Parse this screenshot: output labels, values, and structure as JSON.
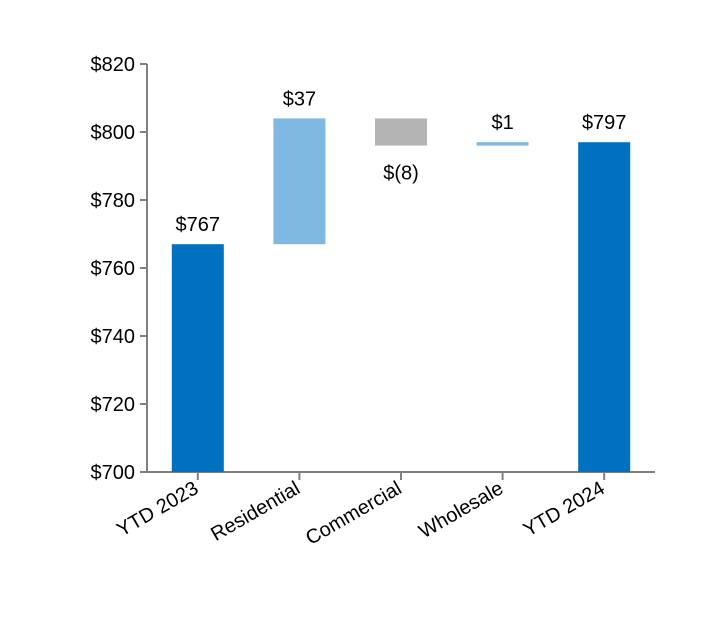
{
  "chart_data": {
    "type": "waterfall",
    "categories": [
      "YTD 2023",
      "Residential",
      "Commercial",
      "Wholesale",
      "YTD 2024"
    ],
    "bars": [
      {
        "kind": "total",
        "start": 0,
        "end": 767,
        "label": "$767",
        "color": "#0070C0"
      },
      {
        "kind": "delta",
        "start": 767,
        "end": 804,
        "label": "$37",
        "color": "#7FB8E1"
      },
      {
        "kind": "delta",
        "start": 804,
        "end": 796,
        "label": "$(8)",
        "color": "#B4B4B4"
      },
      {
        "kind": "delta",
        "start": 796,
        "end": 797,
        "label": "$1",
        "color": "#7FB8E1"
      },
      {
        "kind": "total",
        "start": 0,
        "end": 797,
        "label": "$797",
        "color": "#0070C0"
      }
    ],
    "values": [
      767,
      37,
      -8,
      1,
      797
    ],
    "ylim": [
      700,
      820
    ],
    "yticks": [
      700,
      720,
      740,
      760,
      780,
      800,
      820
    ],
    "ytick_labels": [
      "$700",
      "$720",
      "$740",
      "$760",
      "$780",
      "$800",
      "$820"
    ],
    "title": "",
    "xlabel": "",
    "ylabel": "",
    "grid": false,
    "axis_color": "#808080"
  }
}
